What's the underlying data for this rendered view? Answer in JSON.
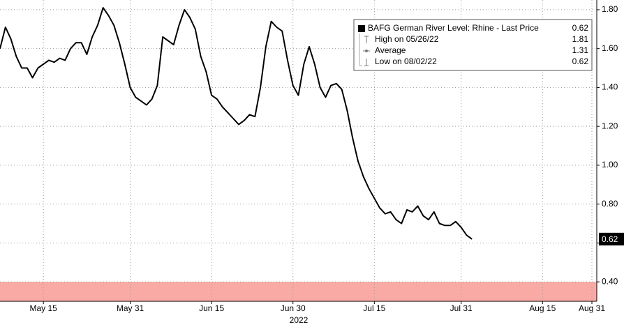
{
  "chart_data": {
    "type": "line",
    "x": [
      "2022-05-07",
      "2022-05-08",
      "2022-05-09",
      "2022-05-10",
      "2022-05-11",
      "2022-05-12",
      "2022-05-13",
      "2022-05-14",
      "2022-05-15",
      "2022-05-16",
      "2022-05-17",
      "2022-05-18",
      "2022-05-19",
      "2022-05-20",
      "2022-05-21",
      "2022-05-22",
      "2022-05-23",
      "2022-05-24",
      "2022-05-25",
      "2022-05-26",
      "2022-05-27",
      "2022-05-28",
      "2022-05-29",
      "2022-05-30",
      "2022-05-31",
      "2022-06-01",
      "2022-06-02",
      "2022-06-03",
      "2022-06-04",
      "2022-06-05",
      "2022-06-06",
      "2022-06-07",
      "2022-06-08",
      "2022-06-09",
      "2022-06-10",
      "2022-06-11",
      "2022-06-12",
      "2022-06-13",
      "2022-06-14",
      "2022-06-15",
      "2022-06-16",
      "2022-06-17",
      "2022-06-18",
      "2022-06-19",
      "2022-06-20",
      "2022-06-21",
      "2022-06-22",
      "2022-06-23",
      "2022-06-24",
      "2022-06-25",
      "2022-06-26",
      "2022-06-27",
      "2022-06-28",
      "2022-06-29",
      "2022-06-30",
      "2022-07-01",
      "2022-07-02",
      "2022-07-03",
      "2022-07-04",
      "2022-07-05",
      "2022-07-06",
      "2022-07-07",
      "2022-07-08",
      "2022-07-09",
      "2022-07-10",
      "2022-07-11",
      "2022-07-12",
      "2022-07-13",
      "2022-07-14",
      "2022-07-15",
      "2022-07-16",
      "2022-07-17",
      "2022-07-18",
      "2022-07-19",
      "2022-07-20",
      "2022-07-21",
      "2022-07-22",
      "2022-07-23",
      "2022-07-24",
      "2022-07-25",
      "2022-07-26",
      "2022-07-27",
      "2022-07-28",
      "2022-07-29",
      "2022-07-30",
      "2022-07-31",
      "2022-08-01",
      "2022-08-02"
    ],
    "series": [
      {
        "name": "BAFG German River Level: Rhine - Last Price",
        "color": "#000000",
        "values": [
          1.6,
          1.71,
          1.65,
          1.56,
          1.5,
          1.5,
          1.45,
          1.5,
          1.52,
          1.54,
          1.53,
          1.55,
          1.54,
          1.6,
          1.63,
          1.63,
          1.57,
          1.66,
          1.72,
          1.81,
          1.77,
          1.72,
          1.63,
          1.52,
          1.4,
          1.35,
          1.33,
          1.31,
          1.34,
          1.41,
          1.66,
          1.64,
          1.62,
          1.72,
          1.8,
          1.76,
          1.7,
          1.56,
          1.48,
          1.36,
          1.34,
          1.3,
          1.27,
          1.24,
          1.21,
          1.23,
          1.26,
          1.25,
          1.4,
          1.61,
          1.74,
          1.71,
          1.69,
          1.54,
          1.41,
          1.36,
          1.52,
          1.61,
          1.52,
          1.4,
          1.35,
          1.41,
          1.42,
          1.39,
          1.28,
          1.14,
          1.02,
          0.94,
          0.88,
          0.83,
          0.78,
          0.75,
          0.76,
          0.72,
          0.7,
          0.77,
          0.76,
          0.79,
          0.74,
          0.72,
          0.76,
          0.7,
          0.69,
          0.69,
          0.71,
          0.68,
          0.64,
          0.62
        ]
      }
    ],
    "xlim": [
      "2022-05-07",
      "2022-08-25"
    ],
    "xticks": [
      {
        "value": "2022-05-15",
        "label": "May 15"
      },
      {
        "value": "2022-05-31",
        "label": "May 31"
      },
      {
        "value": "2022-06-15",
        "label": "Jun 15"
      },
      {
        "value": "2022-06-30",
        "label": "Jun 30"
      },
      {
        "value": "2022-07-15",
        "label": "Jul 15"
      },
      {
        "value": "2022-07-31",
        "label": "Jul 31"
      },
      {
        "value": "2022-08-15",
        "label": "Aug 15"
      },
      {
        "value": "2022-08-31",
        "label": "Aug 31"
      }
    ],
    "x_year_label": "2022",
    "ylim": [
      0.3,
      1.85
    ],
    "yticks": [
      {
        "value": 0.4,
        "label": "0.40"
      },
      {
        "value": 0.6,
        "label": "0.60"
      },
      {
        "value": 0.8,
        "label": "0.80"
      },
      {
        "value": 1.0,
        "label": "1.00"
      },
      {
        "value": 1.2,
        "label": "1.20"
      },
      {
        "value": 1.4,
        "label": "1.40"
      },
      {
        "value": 1.6,
        "label": "1.60"
      },
      {
        "value": 1.8,
        "label": "1.80"
      }
    ],
    "grid": true,
    "shaded_band": {
      "from": 0.3,
      "to": 0.4,
      "color": "#f9aaa5"
    },
    "legend": {
      "title": "BAFG German River Level: Rhine - Last Price",
      "last_value": {
        "value": 0.62,
        "label": "0.62"
      },
      "rows": [
        {
          "label": "High on 05/26/22",
          "value": {
            "value": 1.81,
            "label": "1.81"
          }
        },
        {
          "label": "Average",
          "value": {
            "value": 1.31,
            "label": "1.31"
          }
        },
        {
          "label": "Low on 08/02/22",
          "value": {
            "value": 0.62,
            "label": "0.62"
          }
        }
      ]
    }
  }
}
